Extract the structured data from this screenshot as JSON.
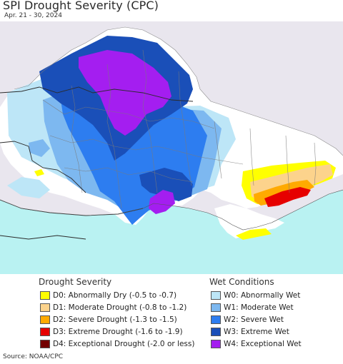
{
  "title": "SPI Drought Severity (CPC)",
  "subtitle": "Apr. 21 - 30, 2024",
  "source": "Source: NOAA/CPC",
  "colors": {
    "ocean": "#b9f2f2",
    "outside": "#e9e6ee",
    "land": "#ffffff",
    "W0": "#bde6f7",
    "W1": "#7db8f0",
    "W2": "#2d7df0",
    "W3": "#1a4fb8",
    "W4": "#a41ef0",
    "D0": "#ffff00",
    "D1": "#fcd38c",
    "D2": "#ffaa00",
    "D3": "#e60000",
    "D4": "#730000"
  },
  "legend": {
    "drought_title": "Drought Severity",
    "wet_title": "Wet Conditions",
    "drought": [
      {
        "code": "D0",
        "label": "D0: Abnormally Dry (-0.5 to -0.7)",
        "color": "#ffff00"
      },
      {
        "code": "D1",
        "label": "D1: Moderate Drought (-0.8 to -1.2)",
        "color": "#fcd38c"
      },
      {
        "code": "D2",
        "label": "D2: Severe Drought (-1.3 to -1.5)",
        "color": "#ffaa00"
      },
      {
        "code": "D3",
        "label": "D3: Extreme Drought (-1.6 to -1.9)",
        "color": "#e60000"
      },
      {
        "code": "D4",
        "label": "D4: Exceptional Drought (-2.0 or less)",
        "color": "#730000"
      }
    ],
    "wet": [
      {
        "code": "W0",
        "label": "W0: Abnormally Wet",
        "color": "#bde6f7"
      },
      {
        "code": "W1",
        "label": "W1: Moderate Wet",
        "color": "#7db8f0"
      },
      {
        "code": "W2",
        "label": "W2: Severe Wet",
        "color": "#2d7df0"
      },
      {
        "code": "W3",
        "label": "W3: Extreme Wet",
        "color": "#1a4fb8"
      },
      {
        "code": "W4",
        "label": "W4: Exceptional Wet",
        "color": "#a41ef0"
      }
    ]
  }
}
